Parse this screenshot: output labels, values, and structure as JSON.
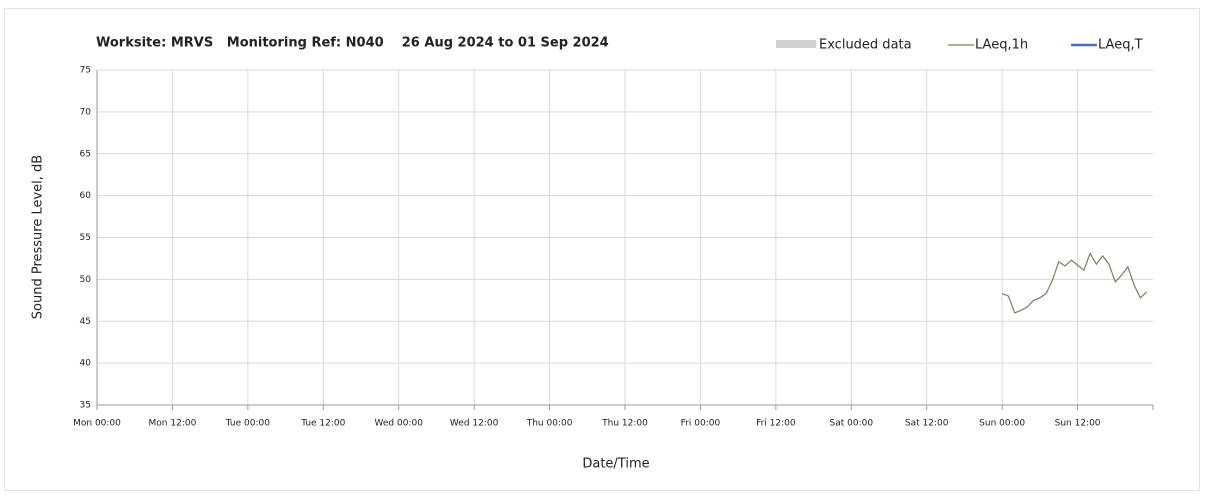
{
  "chart_data": {
    "type": "line",
    "title": "Worksite: MRVS   Monitoring Ref: N040    26 Aug 2024 to 01 Sep 2024",
    "xlabel": "Date/Time",
    "ylabel": "Sound Pressure Level, dB",
    "x": [
      144,
      145,
      146,
      147,
      148,
      149,
      150,
      151,
      152,
      153,
      154,
      155,
      156,
      157,
      158,
      159,
      160,
      161,
      162,
      163,
      164,
      165,
      166,
      167
    ],
    "series": [
      {
        "name": "LAeq,1h",
        "color": "#76815a",
        "values": [
          48.3,
          48.0,
          46.0,
          46.3,
          46.7,
          47.5,
          47.8,
          48.3,
          49.9,
          52.1,
          51.6,
          52.3,
          51.7,
          51.1,
          53.1,
          51.8,
          52.8,
          51.8,
          49.7,
          50.5,
          51.5,
          49.3,
          47.8,
          48.5
        ]
      },
      {
        "name": "LAeq,T",
        "color": "#4472c4",
        "values": [
          null,
          null,
          null,
          null,
          null,
          null,
          null,
          null,
          null,
          null,
          null,
          null,
          null,
          null,
          null,
          null,
          null,
          null,
          null,
          null,
          null,
          null,
          null,
          null
        ]
      }
    ],
    "excluded": {
      "name": "Excluded data",
      "color": "#d0d0d0"
    },
    "xlim": [
      0,
      168
    ],
    "xticks": [
      {
        "value": 0,
        "label": "Mon 00:00"
      },
      {
        "value": 12,
        "label": "Mon 12:00"
      },
      {
        "value": 24,
        "label": "Tue 00:00"
      },
      {
        "value": 36,
        "label": "Tue 12:00"
      },
      {
        "value": 48,
        "label": "Wed 00:00"
      },
      {
        "value": 60,
        "label": "Wed 12:00"
      },
      {
        "value": 72,
        "label": "Thu 00:00"
      },
      {
        "value": 84,
        "label": "Thu 12:00"
      },
      {
        "value": 96,
        "label": "Fri 00:00"
      },
      {
        "value": 108,
        "label": "Fri 12:00"
      },
      {
        "value": 120,
        "label": "Sat 00:00"
      },
      {
        "value": 132,
        "label": "Sat 12:00"
      },
      {
        "value": 144,
        "label": "Sun 00:00"
      },
      {
        "value": 156,
        "label": "Sun 12:00"
      }
    ],
    "ylim": [
      35,
      75
    ],
    "yticks": [
      35,
      40,
      45,
      50,
      55,
      60,
      65,
      70,
      75
    ],
    "grid": true
  }
}
